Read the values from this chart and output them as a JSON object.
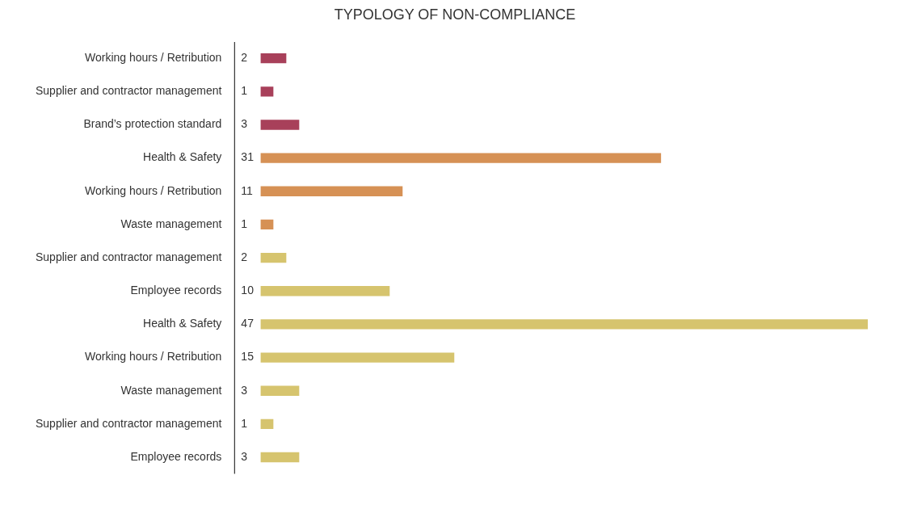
{
  "chart_data": {
    "type": "bar",
    "orientation": "horizontal",
    "title": "TYPOLOGY OF NON-COMPLIANCE",
    "categories": [
      "Working hours / Retribution",
      "Supplier and contractor management",
      "Brand’s protection standard",
      "Health & Safety",
      "Working hours / Retribution",
      "Waste management",
      "Supplier and contractor management",
      "Employee records",
      "Health & Safety",
      "Working hours / Retribution",
      "Waste management",
      "Supplier and contractor management",
      "Employee records"
    ],
    "values": [
      2,
      1,
      3,
      31,
      11,
      1,
      2,
      10,
      47,
      15,
      3,
      1,
      3
    ],
    "colors": [
      "#a8405a",
      "#a8405a",
      "#a8405a",
      "#d69155",
      "#d69155",
      "#d69155",
      "#d6c46e",
      "#d6c46e",
      "#d6c46e",
      "#d6c46e",
      "#d6c46e",
      "#d6c46e",
      "#d6c46e"
    ],
    "data_labels": true
  }
}
